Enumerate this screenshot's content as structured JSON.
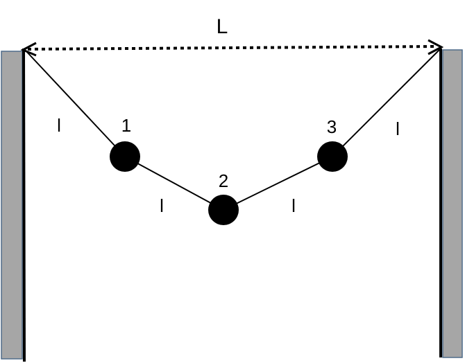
{
  "diagram": {
    "span_label": "L",
    "segment_labels": [
      "l",
      "l",
      "l",
      "l"
    ],
    "masses": [
      {
        "label": "1"
      },
      {
        "label": "2"
      },
      {
        "label": "3"
      }
    ]
  },
  "colors": {
    "wall_fill": "#a6a6a6",
    "wall_border": "#4f6b8a",
    "line": "#000000",
    "mass": "#000000"
  }
}
